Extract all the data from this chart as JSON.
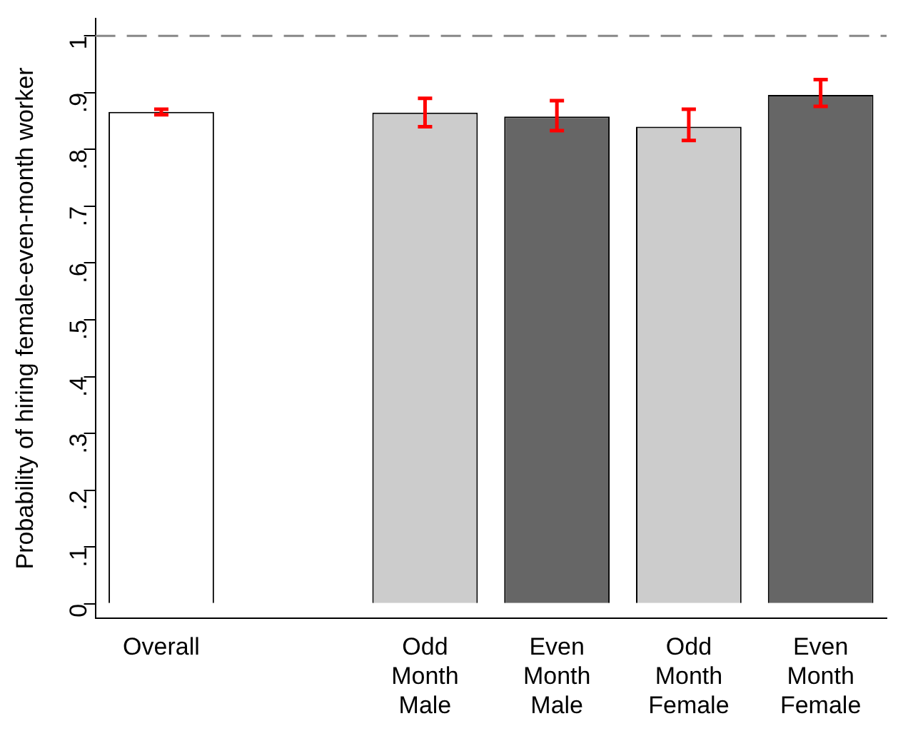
{
  "chart_data": {
    "type": "bar",
    "ylabel": "Probability of hiring female-even-month worker",
    "categories": [
      "Overall",
      null,
      "Odd Month Male",
      "Even Month Male",
      "Odd Month Female",
      "Even Month Female"
    ],
    "values": [
      0.866,
      null,
      0.865,
      0.858,
      0.84,
      0.896
    ],
    "colors": [
      "#ffffff",
      null,
      "#cccccc",
      "#666666",
      "#cccccc",
      "#666666"
    ],
    "errors": [
      [
        0.861,
        0.871
      ],
      null,
      [
        0.84,
        0.89
      ],
      [
        0.833,
        0.886
      ],
      [
        0.816,
        0.871
      ],
      [
        0.876,
        0.923
      ]
    ],
    "ylim": [
      -0.025,
      1.03
    ],
    "yticks": [
      {
        "value": 0,
        "label": "0"
      },
      {
        "value": 0.1,
        "label": ".1"
      },
      {
        "value": 0.2,
        "label": ".2"
      },
      {
        "value": 0.3,
        "label": ".3"
      },
      {
        "value": 0.4,
        "label": ".4"
      },
      {
        "value": 0.5,
        "label": ".5"
      },
      {
        "value": 0.6,
        "label": ".6"
      },
      {
        "value": 0.7,
        "label": ".7"
      },
      {
        "value": 0.8,
        "label": ".8"
      },
      {
        "value": 0.9,
        "label": ".9"
      },
      {
        "value": 1,
        "label": "1"
      }
    ],
    "ref_lines": [
      {
        "axis": "y",
        "value": 1,
        "color": "#888888",
        "line_style": "dashed"
      }
    ],
    "grid": false,
    "legend": false
  }
}
